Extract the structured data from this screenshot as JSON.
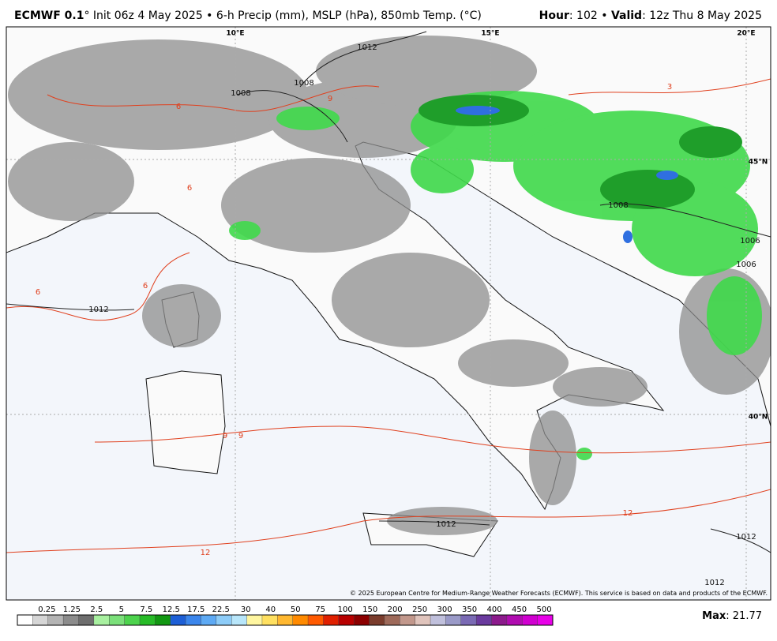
{
  "header": {
    "title_bold": "ECMWF 0.1",
    "title_rest": "° Init 06z 4 May 2025 • 6-h Precip (mm), MSLP (hPa), 850mb Temp. (°C)",
    "hour_label": "Hour",
    "hour_value": ": 102 • ",
    "valid_label": "Valid",
    "valid_value": ": 12z Thu 8 May 2025"
  },
  "map": {
    "labels": [
      "10°E",
      "15°E",
      "20°E",
      "45°N",
      "40°N",
      "1012",
      "1008",
      "1008",
      "1008",
      "1006",
      "1006",
      "1012",
      "1012",
      "1012",
      "1012",
      "6",
      "6",
      "6",
      "6",
      "9",
      "9",
      "9",
      "12",
      "12",
      "3"
    ],
    "credit": "© 2025 European Centre for Medium-Range Weather Forecasts (ECMWF). This service is based on data and products of the ECMWF."
  },
  "colorbar": {
    "labels": [
      0.25,
      1.25,
      2.5,
      5,
      7.5,
      12.5,
      17.5,
      22.5,
      30,
      40,
      50,
      75,
      100,
      150,
      200,
      250,
      300,
      350,
      400,
      450,
      500
    ],
    "colors": [
      "#ffffff",
      "#d6d6d6",
      "#b4b4b4",
      "#8c8c8c",
      "#6e6e6e",
      "#a8f0a0",
      "#7be07a",
      "#4dd34d",
      "#27bb27",
      "#129812",
      "#1d5fd6",
      "#3b86ec",
      "#5eaaf4",
      "#8dccf8",
      "#b8e6fa",
      "#fff6a0",
      "#ffe060",
      "#ffb830",
      "#ff8a00",
      "#ff5a00",
      "#e02000",
      "#b80000",
      "#8c0000",
      "#7a3c2c",
      "#9e6a5a",
      "#c2988c",
      "#e0c4bc",
      "#c0c0dc",
      "#9a9ac8",
      "#7a6ab4",
      "#6a3a9e",
      "#8c1a8c",
      "#b00cb0",
      "#d000d0",
      "#e800e8"
    ]
  },
  "footer": {
    "max_label": "Max",
    "max_value": ": 21.77"
  }
}
